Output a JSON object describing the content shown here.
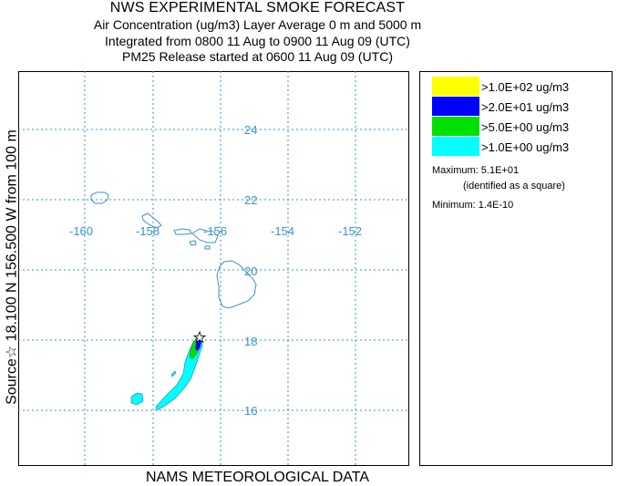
{
  "header": {
    "title": "NWS EXPERIMENTAL SMOKE FORECAST",
    "line1": "Air Concentration (ug/m3) Layer Average    0 m and  5000 m",
    "line2": "Integrated from 0800 11 Aug to 0900 11 Aug 09 (UTC)",
    "line3": "PM25 Release started at 0600 11 Aug 09 (UTC)"
  },
  "side_label": "Source☆ 18.100 N 156.500 W     from  100 m",
  "footer": "NAMS METEOROLOGICAL DATA",
  "map": {
    "lat_labels": [
      "24",
      "22",
      "20",
      "18",
      "16"
    ],
    "lon_labels": [
      "-160",
      "-158",
      "-156",
      "-154",
      "-152"
    ]
  },
  "legend": {
    "items": [
      {
        "label": ">1.0E+02 ug/m3",
        "color": "#ffff00"
      },
      {
        "label": ">2.0E+01 ug/m3",
        "color": "#0000ff"
      },
      {
        "label": ">5.0E+00 ug/m3",
        "color": "#00e000"
      },
      {
        "label": ">1.0E+00 ug/m3",
        "color": "#00ffff"
      }
    ],
    "maximum": "Maximum: 5.1E+01",
    "maximum_note": "(identified as a square)",
    "minimum": "Minimum: 1.4E-10"
  },
  "colors": {
    "grid": "#3a93c9",
    "coastline": "#3a93c9",
    "plume_outer": "#00ffff",
    "plume_mid": "#00e000",
    "plume_core": "#0000ff"
  }
}
